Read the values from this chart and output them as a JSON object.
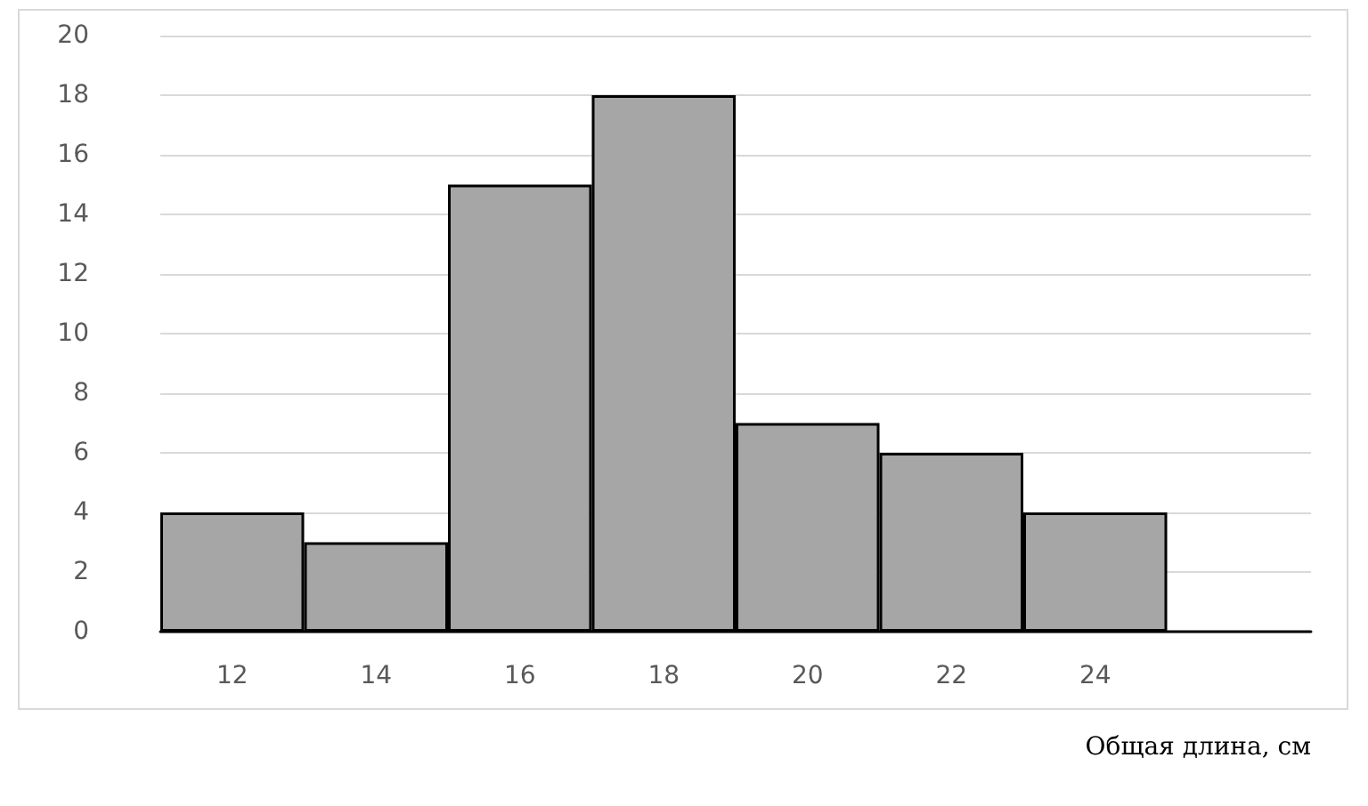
{
  "chart_data": {
    "type": "bar",
    "xlabel": "Общая длина, см",
    "categories": [
      "12",
      "14",
      "16",
      "18",
      "20",
      "22",
      "24",
      null
    ],
    "values": [
      4,
      3,
      15,
      18,
      7,
      6,
      4,
      null
    ],
    "color": "#a6a6a6",
    "ylim": [
      0,
      20
    ],
    "yticks": [
      0,
      2,
      4,
      6,
      8,
      10,
      12,
      14,
      16,
      18,
      20
    ],
    "grid": "y"
  }
}
